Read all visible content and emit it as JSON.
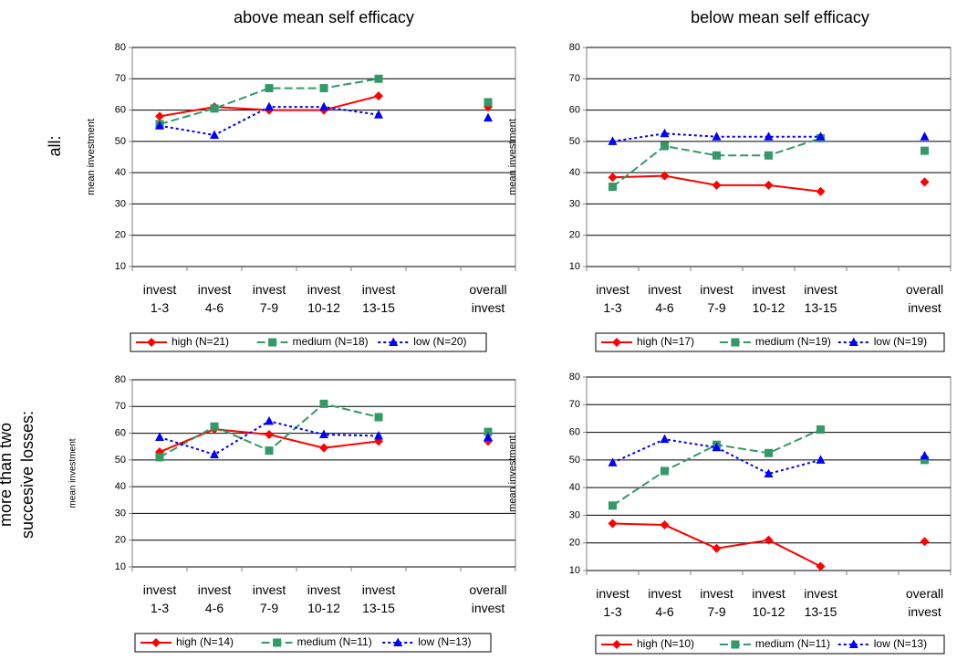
{
  "column_titles": [
    "above mean self efficacy",
    "below mean self efficacy"
  ],
  "row_titles": [
    "all:",
    "more than two succesive losses:"
  ],
  "chart_data": [
    {
      "type": "line",
      "ylabel": "mean investment",
      "categories": [
        "invest 1-3",
        "invest 4-6",
        "invest 7-9",
        "invest 10-12",
        "invest 13-15",
        null,
        "overall invest"
      ],
      "ylim": [
        10,
        80
      ],
      "yticks": [
        10,
        20,
        30,
        40,
        50,
        60,
        70,
        80
      ],
      "grid": true,
      "legend": "bottom",
      "series": [
        {
          "name": "high (N=21)",
          "color": "#ff0000",
          "marker": "diamond",
          "dash": "solid",
          "values": [
            58,
            61,
            60,
            60,
            64.5,
            null,
            61
          ]
        },
        {
          "name": "medium (N=18)",
          "color": "#339966",
          "marker": "square",
          "dash": "dashed",
          "values": [
            55.5,
            60.5,
            67,
            67,
            70,
            null,
            62.5
          ]
        },
        {
          "name": "low (N=20)",
          "color": "#0000ff",
          "marker": "triangle",
          "dash": "dotted",
          "values": [
            55,
            52,
            61,
            61,
            58.5,
            null,
            57.5
          ]
        }
      ]
    },
    {
      "type": "line",
      "ylabel": "mean investment",
      "categories": [
        "invest 1-3",
        "invest 4-6",
        "invest 7-9",
        "invest 10-12",
        "invest 13-15",
        null,
        "overall invest"
      ],
      "ylim": [
        10,
        80
      ],
      "yticks": [
        10,
        20,
        30,
        40,
        50,
        60,
        70,
        80
      ],
      "grid": true,
      "legend": "bottom",
      "series": [
        {
          "name": "high (N=17)",
          "color": "#ff0000",
          "marker": "diamond",
          "dash": "solid",
          "values": [
            38.5,
            39,
            36,
            36,
            34,
            null,
            37
          ]
        },
        {
          "name": "medium (N=19)",
          "color": "#339966",
          "marker": "square",
          "dash": "dashed",
          "values": [
            35.5,
            48.5,
            45.5,
            45.5,
            51,
            null,
            47
          ]
        },
        {
          "name": "low (N=19)",
          "color": "#0000ff",
          "marker": "triangle",
          "dash": "dotted",
          "values": [
            50,
            52.5,
            51.5,
            51.5,
            51.5,
            null,
            51.5
          ]
        }
      ]
    },
    {
      "type": "line",
      "ylabel": "mean investment",
      "categories": [
        "invest 1-3",
        "invest 4-6",
        "invest 7-9",
        "invest 10-12",
        "invest 13-15",
        null,
        "overall invest"
      ],
      "ylim": [
        10,
        80
      ],
      "yticks": [
        10,
        20,
        30,
        40,
        50,
        60,
        70,
        80
      ],
      "grid": true,
      "legend": "bottom",
      "series": [
        {
          "name": "high (N=14)",
          "color": "#ff0000",
          "marker": "diamond",
          "dash": "solid",
          "values": [
            53,
            61.5,
            59.5,
            54.5,
            57,
            null,
            57
          ]
        },
        {
          "name": "medium (N=11)",
          "color": "#339966",
          "marker": "square",
          "dash": "dashed",
          "values": [
            51,
            62.5,
            53.5,
            71,
            66,
            null,
            60.5
          ]
        },
        {
          "name": "low (N=13)",
          "color": "#0000ff",
          "marker": "triangle",
          "dash": "dotted",
          "values": [
            58.5,
            52,
            64.5,
            59.5,
            59,
            null,
            58.5
          ]
        }
      ]
    },
    {
      "type": "line",
      "ylabel": "mean investment",
      "categories": [
        "invest 1-3",
        "invest 4-6",
        "invest 7-9",
        "invest 10-12",
        "invest 13-15",
        null,
        "overall invest"
      ],
      "ylim": [
        10,
        80
      ],
      "yticks": [
        10,
        20,
        30,
        40,
        50,
        60,
        70,
        80
      ],
      "grid": true,
      "legend": "bottom",
      "series": [
        {
          "name": "high (N=10)",
          "color": "#ff0000",
          "marker": "diamond",
          "dash": "solid",
          "values": [
            27,
            26.5,
            18,
            21,
            11.5,
            null,
            20.5
          ]
        },
        {
          "name": "medium (N=11)",
          "color": "#339966",
          "marker": "square",
          "dash": "dashed",
          "values": [
            33.5,
            46,
            55.5,
            52.5,
            61,
            null,
            50
          ]
        },
        {
          "name": "low (N=13)",
          "color": "#0000ff",
          "marker": "triangle",
          "dash": "dotted",
          "values": [
            49,
            57.5,
            54.5,
            45,
            50,
            null,
            51.5
          ]
        }
      ]
    }
  ]
}
